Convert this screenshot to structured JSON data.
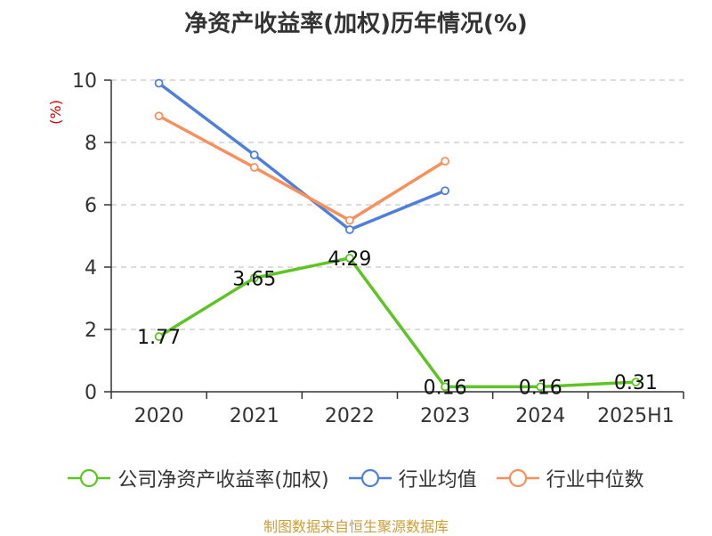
{
  "title": "净资产收益率(加权)历年情况(%)",
  "source_note": "制图数据来自恒生聚源数据库",
  "colors": {
    "roe": "#5ec424",
    "industry_avg": "#4f7fdb",
    "industry_median": "#f7905c",
    "axis": "#333333",
    "grid": "#c8c8c8",
    "ylabel": "#cc0000"
  },
  "chart_data": {
    "type": "line",
    "categories": [
      "2020",
      "2021",
      "2022",
      "2023",
      "2024",
      "2025H1"
    ],
    "ylabel": "(%)",
    "ylim": [
      0,
      10
    ],
    "yticks": [
      0,
      2,
      4,
      6,
      8,
      10
    ],
    "grid": true,
    "legend_position": "bottom",
    "series": [
      {
        "name": "公司净资产收益率(加权)",
        "color_key": "roe",
        "values": [
          1.77,
          3.65,
          4.29,
          0.16,
          0.16,
          0.31
        ],
        "labels": [
          "1.77",
          "3.65",
          "4.29",
          "0.16",
          "0.16",
          "0.31"
        ]
      },
      {
        "name": "行业均值",
        "color_key": "industry_avg",
        "values": [
          9.9,
          7.6,
          5.2,
          6.45,
          null,
          null
        ]
      },
      {
        "name": "行业中位数",
        "color_key": "industry_median",
        "values": [
          8.85,
          7.2,
          5.5,
          7.4,
          null,
          null
        ]
      }
    ]
  }
}
